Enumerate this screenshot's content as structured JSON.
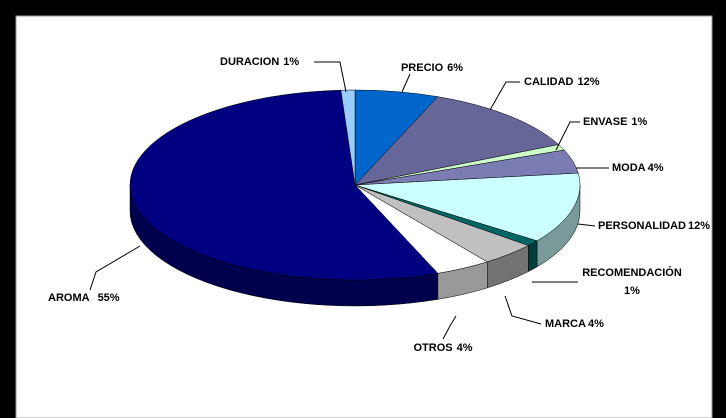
{
  "chart_data": {
    "type": "pie3d",
    "categories": [
      "PRECIO",
      "CALIDAD",
      "ENVASE",
      "MODA",
      "PERSONALIDAD",
      "RECOMENDACIÓN",
      "MARCA",
      "OTROS",
      "AROMA",
      "DURACION"
    ],
    "values": [
      6,
      12,
      1,
      4,
      12,
      1,
      4,
      4,
      55,
      1
    ],
    "value_labels": [
      "6%",
      "12%",
      "1%",
      "4%",
      "12%",
      "1%",
      "4%",
      "4%",
      "55%",
      "1%"
    ],
    "colors": [
      "#0066cc",
      "#666699",
      "#ccffcc",
      "#7c7cb4",
      "#ccffff",
      "#006666",
      "#c0c0c0",
      "#ffffff",
      "#000080",
      "#99ccff"
    ]
  }
}
